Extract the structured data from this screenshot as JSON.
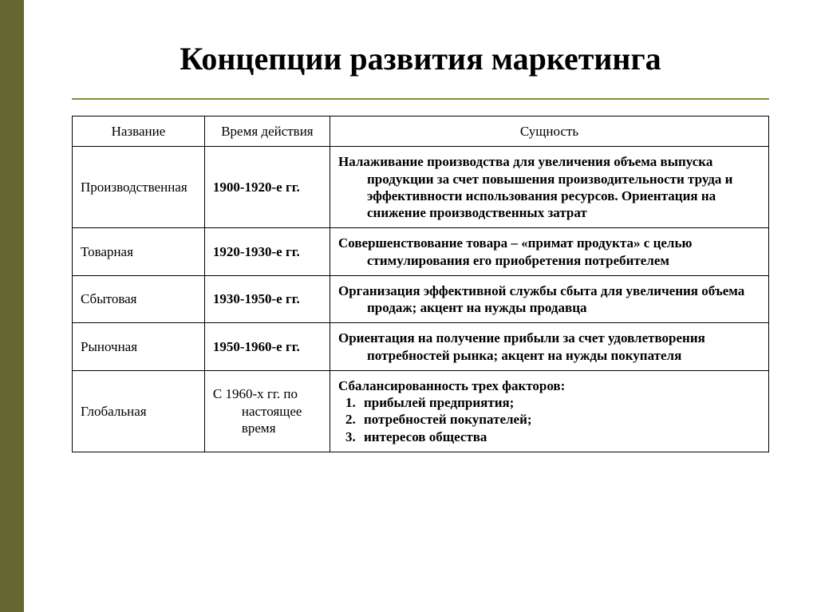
{
  "slide": {
    "title": "Концепции развития маркетинга",
    "sidebar_color": "#666633",
    "rule_color": "#8a8a3c",
    "background_color": "#ffffff",
    "title_fontsize": 40
  },
  "table": {
    "type": "table",
    "border_color": "#000000",
    "cell_fontsize": 17,
    "columns": [
      {
        "label": "Название",
        "width_pct": 19
      },
      {
        "label": "Время действия",
        "width_pct": 18
      },
      {
        "label": "Сущность",
        "width_pct": 63
      }
    ],
    "rows": [
      {
        "name": "Производственная",
        "time": "1900-1920-е гг.",
        "essence": "Налаживание производства для увеличения объема выпуска продукции за счет повышения производительности труда  и эффективности использования ресурсов. Ориентация на снижение производственных затрат"
      },
      {
        "name": "Товарная",
        "time": "1920-1930-е гг.",
        "essence": "Совершенствование товара – «примат продукта» с целью стимулирования его приобретения потребителем"
      },
      {
        "name": "Сбытовая",
        "time": "1930-1950-е гг.",
        "essence": "Организация эффективной службы сбыта для увеличения объема продаж; акцент на нужды продавца"
      },
      {
        "name": "Рыночная",
        "time": "1950-1960-е гг.",
        "essence": "Ориентация на получение прибыли за счет удовлетворения потребностей рынка; акцент на нужды покупателя"
      },
      {
        "name": "Глобальная",
        "time": "С 1960-х гг. по настоящее время",
        "essence_intro": "Сбалансированность трех факторов:",
        "essence_list": [
          "прибылей предприятия;",
          "потребностей покупателей;",
          "интересов общества"
        ]
      }
    ]
  }
}
